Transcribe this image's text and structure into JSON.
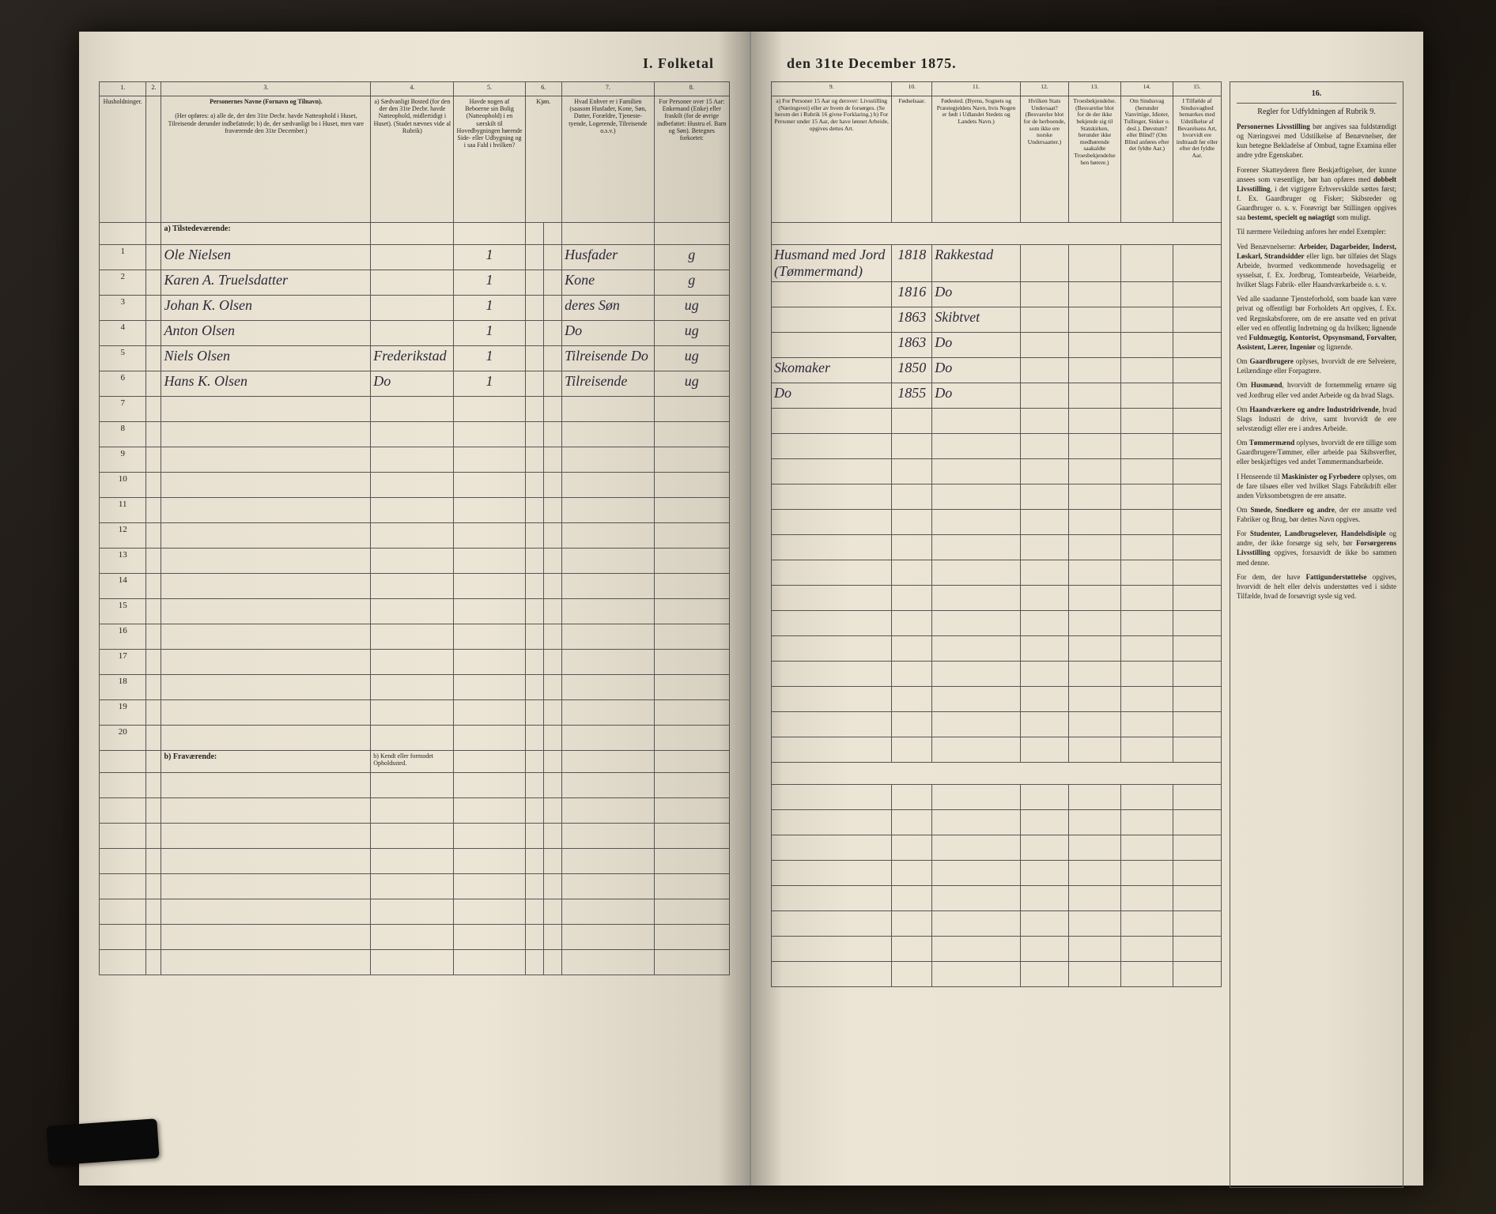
{
  "title_left": "I. Folketal",
  "title_right": "den 31te December 1875.",
  "columns_left": {
    "c1": {
      "num": "1.",
      "head": "Husholdninger."
    },
    "c2": {
      "num": "2.",
      "head": ""
    },
    "c3": {
      "num": "3.",
      "head": "Personernes Navne (Fornavn og Tilnavn)."
    },
    "c3_sub": "(Her opføres: a) alle de, der den 31te Decbr. havde Natteophold i Huset, Tilreisende derunder indbefattede; b) de, der sædvanligt bo i Huset, men vare fraværende den 31te December.)",
    "c4": {
      "num": "4.",
      "head": "a) Sædvanligt Bosted (for den der den 31te Decbr. havde Natteophold, midlertidigt i Huset). (Stadet nævnes vide al Rubrik)"
    },
    "c5": {
      "num": "5.",
      "head": "Havde nogen af Beboerne sin Bolig (Natteophold) i en særskilt til Hovedbygningen hørende Side- eller Udbygning og i saa Fald i hvilken?"
    },
    "c6": {
      "num": "6.",
      "head": "Kjøn."
    },
    "c7": {
      "num": "7.",
      "head": "Hvad Enhver er i Familien (saasom Husfader, Kone, Søn, Datter, Forældre, Tjeneste- tyende, Logerende, Tilreisende o.s.v.)"
    },
    "c8": {
      "num": "8.",
      "head": "For Personer over 15 Aar: Enkemand (Enke) eller fraskilt (for de øvrige indbefattet: Hustru el. Barn og Søn). Betegnes forkortet:"
    }
  },
  "columns_right": {
    "c9": {
      "num": "9.",
      "head": "a) For Personer 15 Aar og derover: Livsstilling (Næringsvei) eller av hvem de forsørges. (Se herom det i Rubrik 16 givne Forklaring.) b) For Personer under 15 Aar, der have lønnet Arbeide, opgives dettes Art."
    },
    "c10": {
      "num": "10.",
      "head": "Fødselsaar."
    },
    "c11": {
      "num": "11.",
      "head": "Fødested. (Byens, Sognets og Præstegjeldets Navn, hvis Nogen er født i Udlandet Stedets og Landets Navn.)"
    },
    "c12": {
      "num": "12.",
      "head": "Hvilken Stats Undersaat? (Besvarelse blot for de herboende, som ikke ere norske Undersaatter.)"
    },
    "c13": {
      "num": "13.",
      "head": "Troesbekjendelse. (Besvarelse blot for de der ikke bekjende sig til Statskirken, herunder ikke medhørende saakaldte Troesbekjendelse hen hørere.)"
    },
    "c14": {
      "num": "14.",
      "head": "Om Sindssvag (herunder Vanvittige, Idioter, Tullinger, Sinker o. desl.). Døvstum? eller Blind? (Om Blind anføres efter det fyldte Aar.)"
    },
    "c15": {
      "num": "15.",
      "head": "I Tilfælde af Sindssvaghed bemærkes med Udstilkelse af Bevarelsens Art, hvorvidt ere indtraadt før eller efter det fyldte Aar."
    }
  },
  "col16_title": "Regler for Udfyldningen af Rubrik 9.",
  "section_a": "a) Tilstedeværende:",
  "section_b": "b) Fraværende:",
  "section_b_col4": "b) Kendt eller formodet Opholdssted.",
  "rows": [
    {
      "n": "1",
      "name": "Ole Nielsen",
      "c4": "",
      "c5": "1",
      "c6": "",
      "c7": "Husfader",
      "c8": "g",
      "c9": "Husmand med Jord (Tømmermand)",
      "c10": "1818",
      "c11": "Rakkestad"
    },
    {
      "n": "2",
      "name": "Karen A. Truelsdatter",
      "c4": "",
      "c5": "1",
      "c6": "",
      "c7": "Kone",
      "c8": "g",
      "c9": "",
      "c10": "1816",
      "c11": "Do"
    },
    {
      "n": "3",
      "name": "Johan K. Olsen",
      "c4": "",
      "c5": "1",
      "c6": "",
      "c7": "deres Søn",
      "c8": "ug",
      "c9": "",
      "c10": "1863",
      "c11": "Skibtvet"
    },
    {
      "n": "4",
      "name": "Anton Olsen",
      "c4": "",
      "c5": "1",
      "c6": "",
      "c7": "Do",
      "c8": "ug",
      "c9": "",
      "c10": "1863",
      "c11": "Do"
    },
    {
      "n": "5",
      "name": "Niels Olsen",
      "c4": "Frederikstad",
      "c5": "1",
      "c6": "",
      "c7": "Tilreisende Do",
      "c8": "ug",
      "c9": "Skomaker",
      "c10": "1850",
      "c11": "Do"
    },
    {
      "n": "6",
      "name": "Hans K. Olsen",
      "c4": "Do",
      "c5": "1",
      "c6": "",
      "c7": "Tilreisende",
      "c8": "ug",
      "c9": "Do",
      "c10": "1855",
      "c11": "Do"
    }
  ],
  "empty_rows_a": [
    "7",
    "8",
    "9",
    "10",
    "11",
    "12",
    "13",
    "14",
    "15",
    "16",
    "17",
    "18",
    "19",
    "20"
  ],
  "empty_rows_b": [
    "",
    "",
    "",
    "",
    "",
    "",
    "",
    ""
  ],
  "rules_paras": [
    "<b>Personernes Livsstilling</b> bør angives saa fuldstændigt og Næringsvei med Udstilkelse af Benævnelser, der kun betegne Bekladelse af Ombud, tagne Examina eller andre ydre Egenskaber.",
    "Forener Skatteyderen flere Beskjæftigelser, der kunne ansees som væsentlige, bør han opføres med <b>dobbelt Livsstilling</b>, i det vigtigere Erhvervskilde sættes først; f. Ex. Gaardbruger og Fisker; Skibsreder og Gaardbruger o. s. v. Forøvrigt bør Stillingen opgives saa <b>bestemt, specielt og nøiagtigt</b> som muligt.",
    "Til nærmere Veiledning anfores her endel Exempler:",
    "Ved Benævnelserne: <b>Arbeider, Dagarbeider, Inderst, Løskarl, Strandsidder</b> eller lign. bør tilføies det Slags Arbeide, hvormed vedkommende hovedsagelig er sysselsat, f. Ex. Jordbrug, Tomtearbei­de, Veiarbeide, hvilket Slags Fabrik- eller Haandværkarbeide o. s. v.",
    "Ved alle saadanne Tjenste­forhold, som baade kan være privat og offentligt bør Forholdets Art opgives, f. Ex. ved Regnskabsforere, om de ere ansatte ved en privat eller ved en offentlig Indretning og da hvilken; lignende ved <b>Fuldmægtig, Kontorist, Opsynsmand, Forvalter, Assistent, Lærer, Ingeniør</b> og lignende.",
    "Om <b>Gaardbrugere</b> oplyses, hvorvidt de ere Selveiere, Leilændinge eller Forpagtere.",
    "Om <b>Husmænd</b>, hvorvidt de fornemmelig ernære sig ved Jordbrug eller ved andet Arbeide og da hvad Slags.",
    "Om <b>Haandværkere og andre Industridrivende</b>, hvad Slags Industri de drive, samt hvorvidt de ere selvstændigt eller ere i andres Arbeide.",
    "Om <b>Tømmermænd</b> oplyses, hvorvidt de ere tillige som Gaardbrugere/Tømmer, eller arbeide paa Skibsverfter, eller beskjæftiges ved andet Tømmermandsarbeide.",
    "I Henseende til <b>Maskinister og Fyrbødere</b> oplyses, om de fare tilsøes eller ved hvilket Slags Fabrikdrift eller anden Virksombetsgren de ere ansatte.",
    "Om <b>Smede, Snedkere og andre</b>, der ere ansatte ved Fabriker og Brug, bør dettes Navn opgives.",
    "For <b>Studenter, Landbrugselever, Handelsdisiple</b> og andre, der ikke forsørge sig selv, bør <b>Forsørgerens Livsstilling</b> opgives, forsaavidt de ikke bo sammen med denne.",
    "For dem, der have <b>Fattigunderstøttelse</b> opgives, hvorvidt de helt eller delvis understøttes ved i sidste Tilfælde, hvad de forsøvrigt sysle sig ved."
  ]
}
